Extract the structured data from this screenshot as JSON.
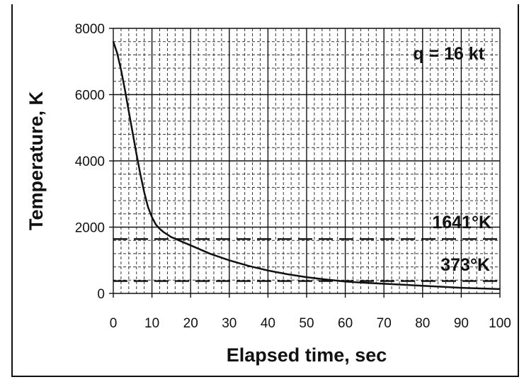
{
  "chart_data": {
    "type": "line",
    "xlabel": "Elapsed time, sec",
    "ylabel": "Temperature, K",
    "xlim": [
      0,
      100
    ],
    "ylim": [
      0,
      8000
    ],
    "x_ticks": [
      0,
      10,
      20,
      30,
      40,
      50,
      60,
      70,
      80,
      90,
      100
    ],
    "y_ticks": [
      0,
      2000,
      4000,
      6000,
      8000
    ],
    "grid": "on (major solid, minor dashed)",
    "annotations": [
      {
        "text": "q = 16 kt",
        "placement": "top-right"
      },
      {
        "text": "1641°K",
        "placement": "above 1641 line, right"
      },
      {
        "text": "373°K",
        "placement": "above 373 line, right"
      }
    ],
    "reference_lines": [
      {
        "label": "1641°K",
        "y": 1641,
        "style": "dashed"
      },
      {
        "label": "373°K",
        "y": 373,
        "style": "dashed"
      }
    ],
    "series": [
      {
        "x": [
          0,
          1,
          2,
          3,
          4,
          5,
          6,
          7,
          8,
          9,
          10,
          11,
          12,
          13,
          15,
          17,
          20,
          25,
          30,
          35,
          40,
          45,
          50,
          55,
          60,
          65,
          70,
          75,
          80,
          85,
          90,
          95,
          100
        ],
        "values": [
          7600,
          7250,
          6750,
          6150,
          5500,
          4850,
          4200,
          3600,
          3050,
          2600,
          2300,
          2080,
          1950,
          1850,
          1700,
          1600,
          1450,
          1200,
          1000,
          830,
          690,
          580,
          490,
          420,
          360,
          320,
          290,
          260,
          230,
          200,
          170,
          150,
          130
        ]
      }
    ]
  }
}
